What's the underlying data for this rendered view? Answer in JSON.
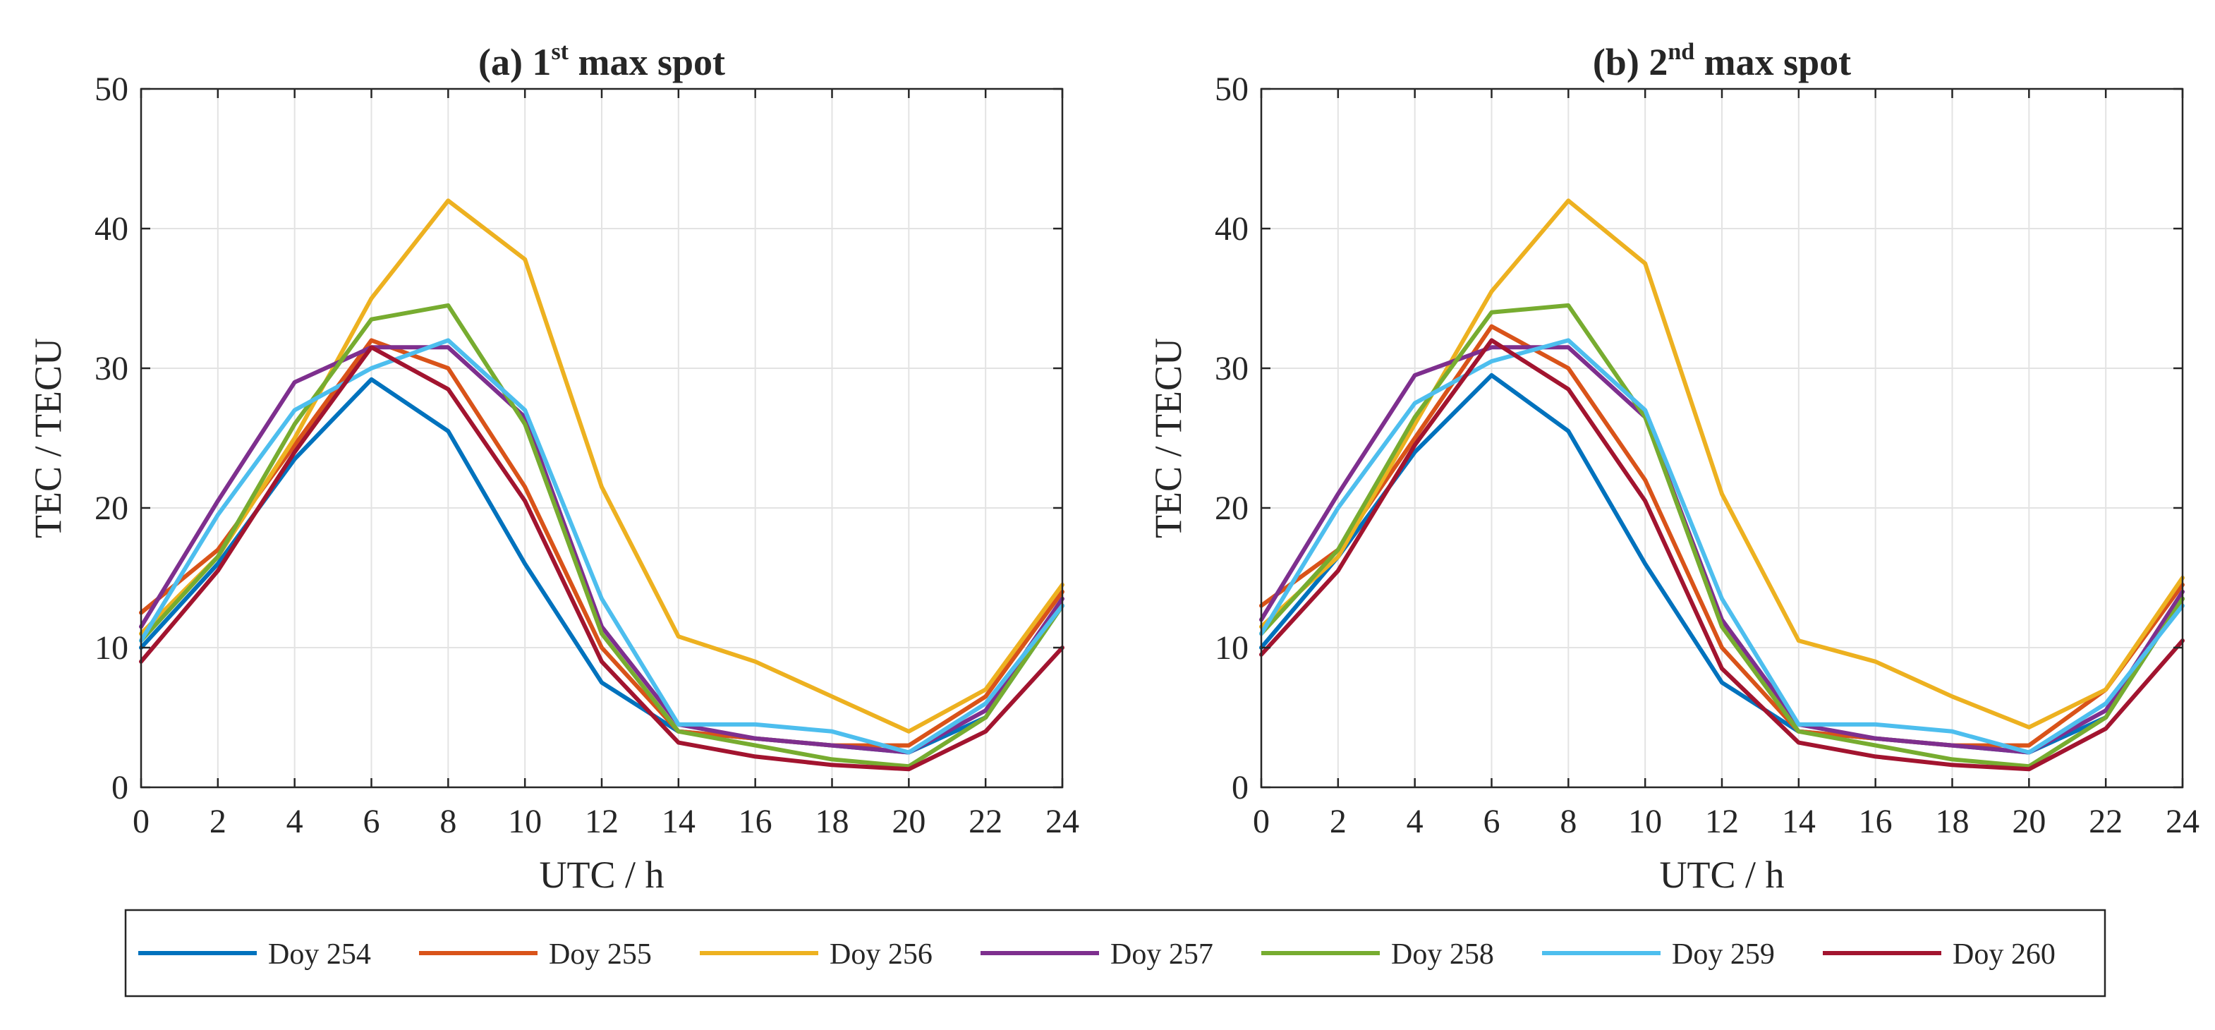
{
  "chart_data": [
    {
      "type": "line",
      "title": {
        "prefix": "(a) 1",
        "sup": "st",
        "suffix": " max spot"
      },
      "xlabel": "UTC / h",
      "ylabel": "TEC / TECU",
      "xlim": [
        0,
        24
      ],
      "ylim": [
        0,
        50
      ],
      "xticks": [
        0,
        2,
        4,
        6,
        8,
        10,
        12,
        14,
        16,
        18,
        20,
        22,
        24
      ],
      "yticks": [
        0,
        10,
        20,
        30,
        40,
        50
      ],
      "grid": true,
      "x": [
        0,
        2,
        4,
        6,
        8,
        10,
        12,
        14,
        16,
        18,
        20,
        22,
        24
      ],
      "series": [
        {
          "name": "Doy 254",
          "values": [
            10,
            16,
            23.5,
            29.2,
            25.5,
            16,
            7.5,
            4,
            3.5,
            3,
            2.5,
            5,
            13
          ]
        },
        {
          "name": "Doy 255",
          "values": [
            12.5,
            17,
            24.5,
            32,
            30,
            21.5,
            10,
            4,
            3.5,
            3,
            3,
            6.5,
            14
          ]
        },
        {
          "name": "Doy 256",
          "values": [
            11,
            16.5,
            25,
            35,
            42,
            37.8,
            21.5,
            10.8,
            9,
            6.5,
            4,
            7,
            14.5
          ]
        },
        {
          "name": "Doy 257",
          "values": [
            11.5,
            20.5,
            29,
            31.5,
            31.5,
            26.5,
            11.5,
            4.5,
            3.5,
            3,
            2.5,
            5.5,
            13.5
          ]
        },
        {
          "name": "Doy 258",
          "values": [
            10.5,
            16.5,
            26,
            33.5,
            34.5,
            26,
            11,
            4,
            3,
            2,
            1.5,
            5,
            13
          ]
        },
        {
          "name": "Doy 259",
          "values": [
            10.5,
            19.5,
            27,
            30,
            32,
            27,
            13.5,
            4.5,
            4.5,
            4,
            2.5,
            6,
            13
          ]
        },
        {
          "name": "Doy 260",
          "values": [
            9,
            15.5,
            24,
            31.5,
            28.5,
            20.5,
            9,
            3.2,
            2.2,
            1.6,
            1.3,
            4,
            10
          ]
        }
      ]
    },
    {
      "type": "line",
      "title": {
        "prefix": "(b) 2",
        "sup": "nd",
        "suffix": " max spot"
      },
      "xlabel": "UTC / h",
      "ylabel": "TEC / TECU",
      "xlim": [
        0,
        24
      ],
      "ylim": [
        0,
        50
      ],
      "xticks": [
        0,
        2,
        4,
        6,
        8,
        10,
        12,
        14,
        16,
        18,
        20,
        22,
        24
      ],
      "yticks": [
        0,
        10,
        20,
        30,
        40,
        50
      ],
      "grid": true,
      "x": [
        0,
        2,
        4,
        6,
        8,
        10,
        12,
        14,
        16,
        18,
        20,
        22,
        24
      ],
      "series": [
        {
          "name": "Doy 254",
          "values": [
            10,
            16.5,
            24,
            29.5,
            25.5,
            16,
            7.5,
            4,
            3.5,
            3,
            2.5,
            5,
            13.5
          ]
        },
        {
          "name": "Doy 255",
          "values": [
            13,
            17,
            25,
            33,
            30,
            22,
            10,
            4,
            3.5,
            3,
            3,
            7,
            14.5
          ]
        },
        {
          "name": "Doy 256",
          "values": [
            11.5,
            16.5,
            26,
            35.5,
            42,
            37.5,
            21,
            10.5,
            9,
            6.5,
            4.3,
            7,
            15
          ]
        },
        {
          "name": "Doy 257",
          "values": [
            12,
            21,
            29.5,
            31.5,
            31.5,
            26.5,
            12,
            4.5,
            3.5,
            3,
            2.5,
            5.5,
            14
          ]
        },
        {
          "name": "Doy 258",
          "values": [
            11,
            17,
            26.5,
            34,
            34.5,
            26.5,
            11.5,
            4,
            3,
            2,
            1.5,
            5,
            13.5
          ]
        },
        {
          "name": "Doy 259",
          "values": [
            11,
            20,
            27.5,
            30.5,
            32,
            27,
            13.5,
            4.5,
            4.5,
            4,
            2.5,
            6,
            13
          ]
        },
        {
          "name": "Doy 260",
          "values": [
            9.5,
            15.5,
            24.5,
            32,
            28.5,
            20.5,
            8.5,
            3.2,
            2.2,
            1.6,
            1.3,
            4.2,
            10.5
          ]
        }
      ]
    }
  ],
  "legend": [
    {
      "label": "Doy 254",
      "color": "#0072BD"
    },
    {
      "label": "Doy 255",
      "color": "#D95319"
    },
    {
      "label": "Doy 256",
      "color": "#EDB120"
    },
    {
      "label": "Doy 257",
      "color": "#7E2F8E"
    },
    {
      "label": "Doy 258",
      "color": "#77AC30"
    },
    {
      "label": "Doy 259",
      "color": "#4DBEEE"
    },
    {
      "label": "Doy 260",
      "color": "#A2142F"
    }
  ]
}
